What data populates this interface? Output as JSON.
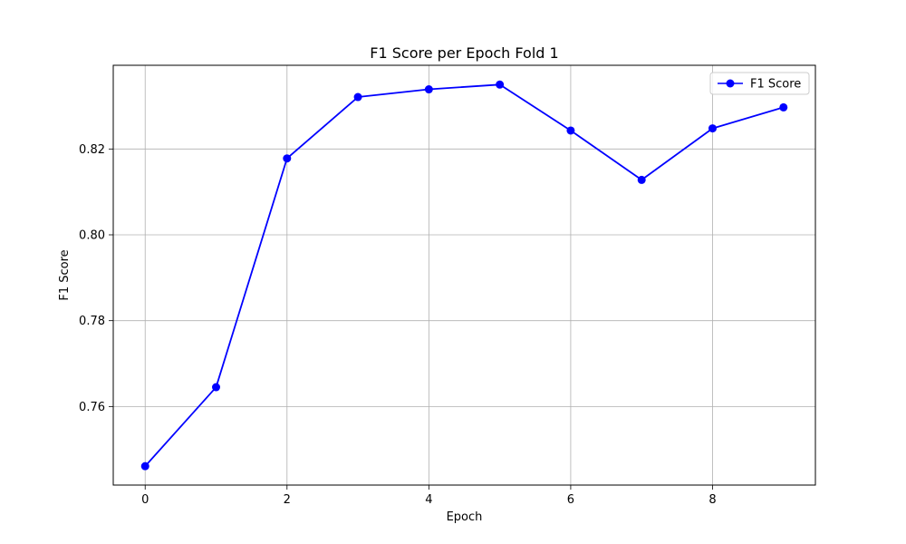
{
  "chart_data": {
    "type": "line",
    "title": "F1 Score per Epoch Fold 1",
    "xlabel": "Epoch",
    "ylabel": "F1 Score",
    "x": [
      0,
      1,
      2,
      3,
      4,
      5,
      6,
      7,
      8,
      9
    ],
    "series": [
      {
        "name": "F1 Score",
        "color": "#0000ff",
        "marker": "circle",
        "values": [
          0.7461,
          0.7645,
          0.8178,
          0.8321,
          0.8339,
          0.835,
          0.8243,
          0.8128,
          0.8248,
          0.8297
        ]
      }
    ],
    "xticks": [
      "0",
      "2",
      "4",
      "6",
      "8"
    ],
    "yticks": [
      "0.76",
      "0.78",
      "0.80",
      "0.82"
    ],
    "xlim": [
      -0.45,
      9.45
    ],
    "ylim": [
      0.7417,
      0.8395
    ],
    "grid": true,
    "legend_position": "top-right"
  }
}
